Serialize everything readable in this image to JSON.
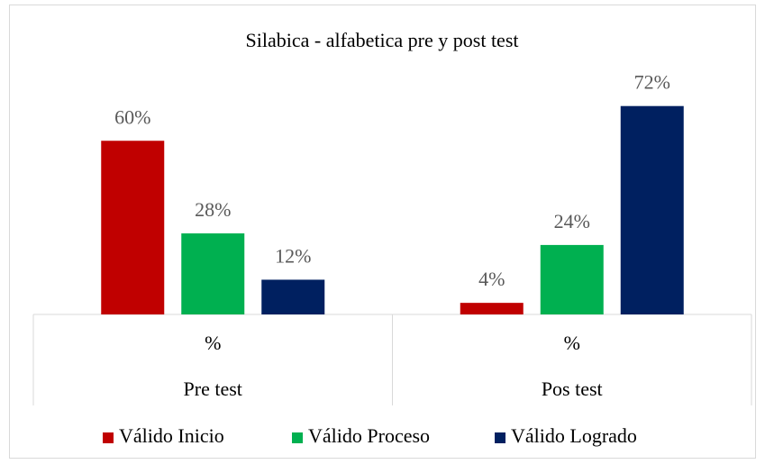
{
  "chart_data": {
    "type": "bar",
    "title": "Silabica - alfabetica pre y post test",
    "categories": [
      "%",
      "%"
    ],
    "groups": [
      "Pre test",
      "Pos test"
    ],
    "series": [
      {
        "name": "Válido Inicio",
        "color": "#c00000",
        "values": [
          60,
          4
        ],
        "value_labels": [
          "60%",
          "4%"
        ]
      },
      {
        "name": "Válido Proceso",
        "color": "#00b050",
        "values": [
          28,
          24
        ],
        "value_labels": [
          "28%",
          "24%"
        ]
      },
      {
        "name": "Válido Logrado",
        "color": "#002060",
        "values": [
          12,
          72
        ],
        "value_labels": [
          "12%",
          "72%"
        ]
      }
    ],
    "ylim": [
      0,
      80
    ]
  }
}
